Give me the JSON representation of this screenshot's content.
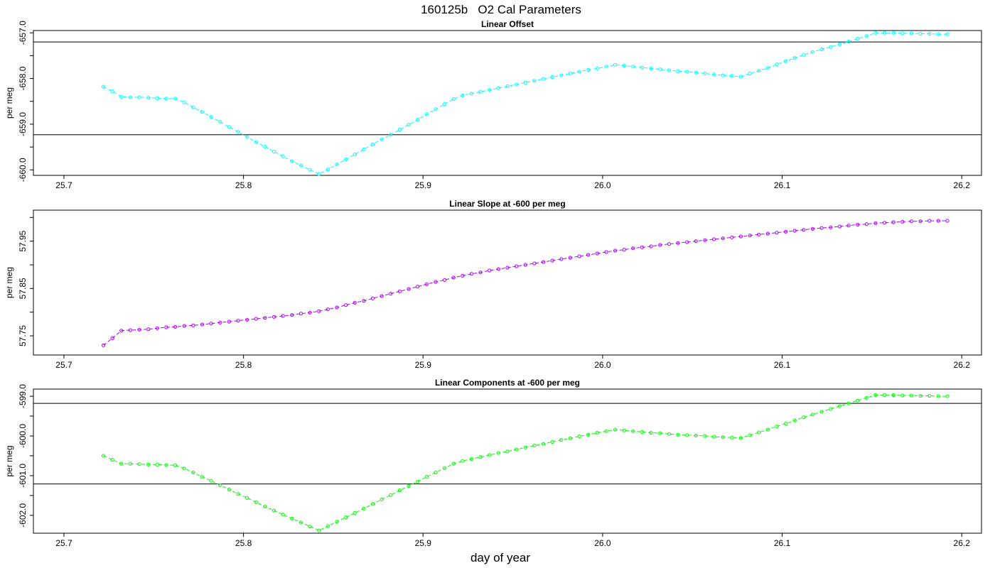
{
  "figure": {
    "title": "160125b   O2 Cal Parameters",
    "xlabel": "day of year"
  },
  "chart_data": [
    {
      "type": "line",
      "title": "Linear Offset",
      "xlabel": "",
      "ylabel": "per meg",
      "xlim": [
        25.683,
        26.211
      ],
      "ylim": [
        -660.12,
        -656.95
      ],
      "xticks": [
        "25.7",
        "25.8",
        "25.9",
        "26.0",
        "26.1",
        "26.2"
      ],
      "yticks": [
        "-657.0",
        "-658.0",
        "-659.0",
        "-660.0"
      ],
      "minor_yticks": [
        -657.5,
        -658.5,
        -659.5
      ],
      "hlines": [
        -657.2,
        -659.23
      ],
      "color": "#00ffff",
      "series": [
        {
          "x": [
            25.722,
            25.727,
            25.732,
            25.737,
            25.742,
            25.747,
            25.752,
            25.757,
            25.762,
            25.767,
            25.772,
            25.777,
            25.782,
            25.787,
            25.792,
            25.797,
            25.802,
            25.807,
            25.812,
            25.817,
            25.822,
            25.827,
            25.832,
            25.837,
            25.842,
            25.847,
            25.852,
            25.857,
            25.862,
            25.867,
            25.872,
            25.877,
            25.882,
            25.887,
            25.892,
            25.897,
            25.902,
            25.907,
            25.912,
            25.917,
            25.922,
            25.927,
            25.932,
            25.937,
            25.942,
            25.947,
            25.952,
            25.957,
            25.962,
            25.967,
            25.972,
            25.977,
            25.982,
            25.987,
            25.992,
            25.997,
            26.002,
            26.007,
            26.012,
            26.017,
            26.022,
            26.027,
            26.032,
            26.037,
            26.042,
            26.047,
            26.052,
            26.057,
            26.062,
            26.067,
            26.072,
            26.077,
            26.082,
            26.087,
            26.092,
            26.097,
            26.102,
            26.107,
            26.112,
            26.117,
            26.122,
            26.127,
            26.132,
            26.137,
            26.142,
            26.147,
            26.152,
            26.157,
            26.162,
            26.167,
            26.172,
            26.177,
            26.182,
            26.187,
            26.192
          ],
          "y": [
            -658.18,
            -658.28,
            -658.4,
            -658.41,
            -658.41,
            -658.42,
            -658.43,
            -658.44,
            -658.44,
            -658.52,
            -658.63,
            -658.73,
            -658.84,
            -658.95,
            -659.06,
            -659.17,
            -659.28,
            -659.39,
            -659.49,
            -659.6,
            -659.7,
            -659.81,
            -659.9,
            -660.0,
            -660.09,
            -659.99,
            -659.88,
            -659.77,
            -659.66,
            -659.55,
            -659.44,
            -659.33,
            -659.23,
            -659.12,
            -659.01,
            -658.9,
            -658.78,
            -658.67,
            -658.56,
            -658.45,
            -658.37,
            -658.33,
            -658.29,
            -658.25,
            -658.21,
            -658.17,
            -658.13,
            -658.09,
            -658.05,
            -658.01,
            -657.97,
            -657.93,
            -657.89,
            -657.85,
            -657.81,
            -657.78,
            -657.74,
            -657.7,
            -657.72,
            -657.74,
            -657.76,
            -657.78,
            -657.8,
            -657.82,
            -657.84,
            -657.85,
            -657.87,
            -657.89,
            -657.91,
            -657.93,
            -657.94,
            -657.96,
            -657.89,
            -657.83,
            -657.77,
            -657.69,
            -657.62,
            -657.55,
            -657.48,
            -657.42,
            -657.36,
            -657.31,
            -657.25,
            -657.19,
            -657.13,
            -657.07,
            -657.0,
            -657.0,
            -657.0,
            -657.01,
            -657.01,
            -657.02,
            -657.02,
            -657.03,
            -657.03
          ]
        }
      ]
    },
    {
      "type": "line",
      "title": "Linear Slope at -600 per meg",
      "xlabel": "",
      "ylabel": "per meg",
      "xlim": [
        25.683,
        26.211
      ],
      "ylim": [
        57.7095,
        58.0155
      ],
      "xticks": [
        "25.7",
        "25.8",
        "25.9",
        "26.0",
        "26.1",
        "26.2"
      ],
      "yticks": [
        "57.75",
        "57.85",
        "57.95"
      ],
      "minor_yticks": [
        57.8,
        57.9,
        58.0
      ],
      "hlines": [],
      "color": "#aa00ff",
      "series": [
        {
          "x": [
            25.722,
            25.727,
            25.732,
            25.737,
            25.742,
            25.747,
            25.752,
            25.757,
            25.762,
            25.767,
            25.772,
            25.777,
            25.782,
            25.787,
            25.792,
            25.797,
            25.802,
            25.807,
            25.812,
            25.817,
            25.822,
            25.827,
            25.832,
            25.837,
            25.842,
            25.847,
            25.852,
            25.857,
            25.862,
            25.867,
            25.872,
            25.877,
            25.882,
            25.887,
            25.892,
            25.897,
            25.902,
            25.907,
            25.912,
            25.917,
            25.922,
            25.927,
            25.932,
            25.937,
            25.942,
            25.947,
            25.952,
            25.957,
            25.962,
            25.967,
            25.972,
            25.977,
            25.982,
            25.987,
            25.992,
            25.997,
            26.002,
            26.007,
            26.012,
            26.017,
            26.022,
            26.027,
            26.032,
            26.037,
            26.042,
            26.047,
            26.052,
            26.057,
            26.062,
            26.067,
            26.072,
            26.077,
            26.082,
            26.087,
            26.092,
            26.097,
            26.102,
            26.107,
            26.112,
            26.117,
            26.122,
            26.127,
            26.132,
            26.137,
            26.142,
            26.147,
            26.152,
            26.157,
            26.162,
            26.167,
            26.172,
            26.177,
            26.182,
            26.187,
            26.192
          ],
          "y": [
            57.73,
            57.745,
            57.761,
            57.762,
            57.763,
            57.764,
            57.766,
            57.768,
            57.769,
            57.771,
            57.772,
            57.774,
            57.776,
            57.778,
            57.78,
            57.782,
            57.784,
            57.786,
            57.788,
            57.79,
            57.792,
            57.794,
            57.797,
            57.799,
            57.802,
            57.806,
            57.81,
            57.815,
            57.82,
            57.824,
            57.829,
            57.834,
            57.839,
            57.844,
            57.849,
            57.854,
            57.859,
            57.864,
            57.868,
            57.873,
            57.877,
            57.881,
            57.884,
            57.888,
            57.891,
            57.894,
            57.897,
            57.9,
            57.903,
            57.906,
            57.909,
            57.912,
            57.915,
            57.918,
            57.921,
            57.924,
            57.927,
            57.93,
            57.932,
            57.935,
            57.937,
            57.939,
            57.942,
            57.944,
            57.946,
            57.948,
            57.95,
            57.952,
            57.954,
            57.956,
            57.958,
            57.96,
            57.962,
            57.964,
            57.966,
            57.968,
            57.97,
            57.972,
            57.974,
            57.976,
            57.978,
            57.979,
            57.981,
            57.983,
            57.985,
            57.986,
            57.988,
            57.989,
            57.99,
            57.991,
            57.992,
            57.992,
            57.993,
            57.993,
            57.993
          ]
        }
      ]
    },
    {
      "type": "line",
      "title": "Linear Components at -600 per meg",
      "xlabel": "",
      "ylabel": "per meg",
      "xlim": [
        25.683,
        26.211
      ],
      "ylim": [
        -602.45,
        -598.82
      ],
      "xticks": [
        "25.7",
        "25.8",
        "25.9",
        "26.0",
        "26.1",
        "26.2"
      ],
      "yticks": [
        "-599.0",
        "-600.0",
        "-601.0",
        "-602.0"
      ],
      "minor_yticks": [
        -599.5,
        -600.5,
        -601.5
      ],
      "hlines": [
        -599.18,
        -601.21
      ],
      "color": "#00ff00",
      "series": [
        {
          "x": [
            25.722,
            25.727,
            25.732,
            25.737,
            25.742,
            25.747,
            25.752,
            25.757,
            25.762,
            25.767,
            25.772,
            25.777,
            25.782,
            25.787,
            25.792,
            25.797,
            25.802,
            25.807,
            25.812,
            25.817,
            25.822,
            25.827,
            25.832,
            25.837,
            25.842,
            25.847,
            25.852,
            25.857,
            25.862,
            25.867,
            25.872,
            25.877,
            25.882,
            25.887,
            25.892,
            25.897,
            25.902,
            25.907,
            25.912,
            25.917,
            25.922,
            25.927,
            25.932,
            25.937,
            25.942,
            25.947,
            25.952,
            25.957,
            25.962,
            25.967,
            25.972,
            25.977,
            25.982,
            25.987,
            25.992,
            25.997,
            26.002,
            26.007,
            26.012,
            26.017,
            26.022,
            26.027,
            26.032,
            26.037,
            26.042,
            26.047,
            26.052,
            26.057,
            26.062,
            26.067,
            26.072,
            26.077,
            26.082,
            26.087,
            26.092,
            26.097,
            26.102,
            26.107,
            26.112,
            26.117,
            26.122,
            26.127,
            26.132,
            26.137,
            26.142,
            26.147,
            26.152,
            26.157,
            26.162,
            26.167,
            26.172,
            26.177,
            26.182,
            26.187,
            26.192
          ],
          "y": [
            -600.5,
            -600.6,
            -600.7,
            -600.7,
            -600.71,
            -600.72,
            -600.72,
            -600.73,
            -600.74,
            -600.82,
            -600.92,
            -601.03,
            -601.13,
            -601.24,
            -601.35,
            -601.46,
            -601.56,
            -601.67,
            -601.78,
            -601.88,
            -601.98,
            -602.08,
            -602.18,
            -602.28,
            -602.38,
            -602.27,
            -602.16,
            -602.05,
            -601.94,
            -601.83,
            -601.71,
            -601.6,
            -601.49,
            -601.37,
            -601.26,
            -601.15,
            -601.03,
            -600.92,
            -600.81,
            -600.7,
            -600.63,
            -600.58,
            -600.53,
            -600.48,
            -600.43,
            -600.39,
            -600.34,
            -600.29,
            -600.24,
            -600.2,
            -600.15,
            -600.1,
            -600.06,
            -600.01,
            -599.97,
            -599.92,
            -599.88,
            -599.84,
            -599.86,
            -599.88,
            -599.9,
            -599.92,
            -599.93,
            -599.95,
            -599.97,
            -599.98,
            -599.99,
            -600.0,
            -600.02,
            -600.03,
            -600.04,
            -600.05,
            -599.98,
            -599.91,
            -599.84,
            -599.76,
            -599.69,
            -599.61,
            -599.53,
            -599.46,
            -599.39,
            -599.32,
            -599.25,
            -599.18,
            -599.11,
            -599.04,
            -598.97,
            -598.97,
            -598.97,
            -598.98,
            -598.98,
            -598.99,
            -598.99,
            -599.0,
            -599.0
          ]
        }
      ]
    }
  ]
}
